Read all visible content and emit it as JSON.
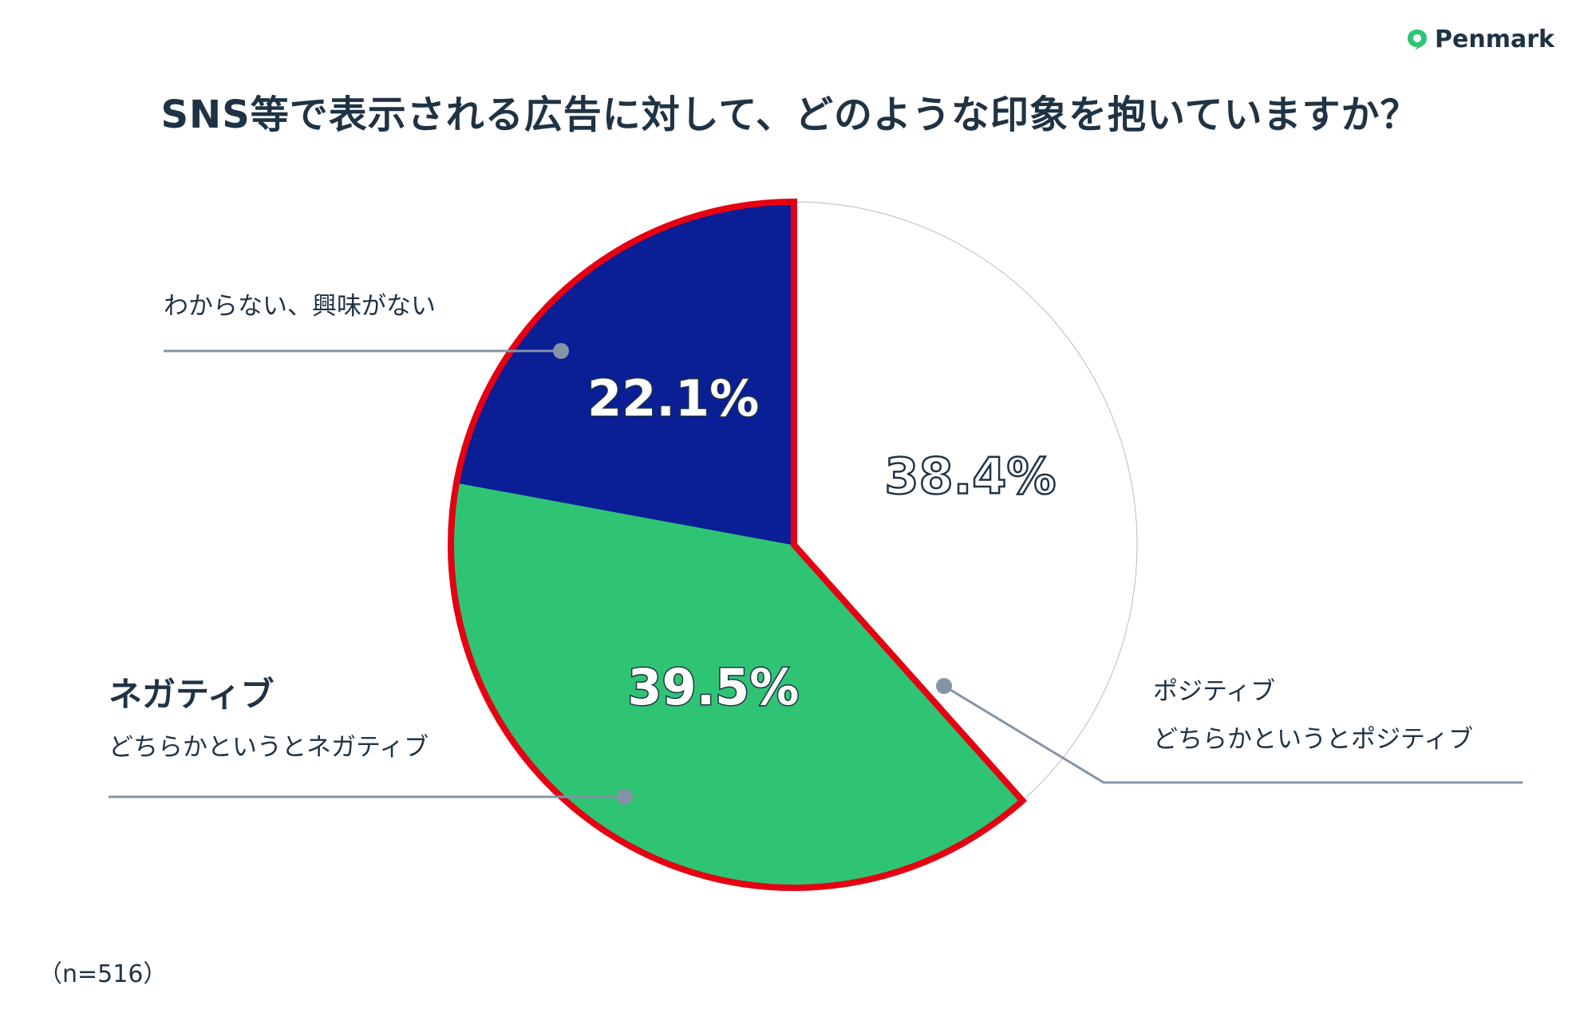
{
  "brand": {
    "logo_text": "Penmark",
    "accent": "#2fc474"
  },
  "title": "SNS等で表示される広告に対して、どのような印象を抱いていますか？",
  "note": "（n=516）",
  "chart_data": {
    "type": "pie",
    "title": "SNS等で表示される広告に対して、どのような印象を抱いていますか？",
    "start_angle_deg": 0,
    "direction": "clockwise",
    "highlight_outline_color": "#e50012",
    "slices": [
      {
        "value": 38.4,
        "value_label": "38.4%",
        "color": "#ffffff",
        "label_style": "outline",
        "legend_heading": "",
        "legend_lines": [
          "ポジティブ",
          "どちらかというとポジティブ"
        ],
        "legend_side": "right",
        "highlighted": false
      },
      {
        "value": 39.5,
        "value_label": "39.5%",
        "color": "#2fc474",
        "label_style": "white",
        "legend_heading": "ネガティブ",
        "legend_lines": [
          "どちらかというとネガティブ"
        ],
        "legend_side": "left-bottom",
        "highlighted": true
      },
      {
        "value": 22.1,
        "value_label": "22.1%",
        "color": "#0a1e96",
        "label_style": "white",
        "legend_heading": "",
        "legend_lines": [
          "わからない、興味がない"
        ],
        "legend_side": "left-top",
        "highlighted": true
      }
    ],
    "connector_color": "#8593a8",
    "legend": "callouts"
  }
}
